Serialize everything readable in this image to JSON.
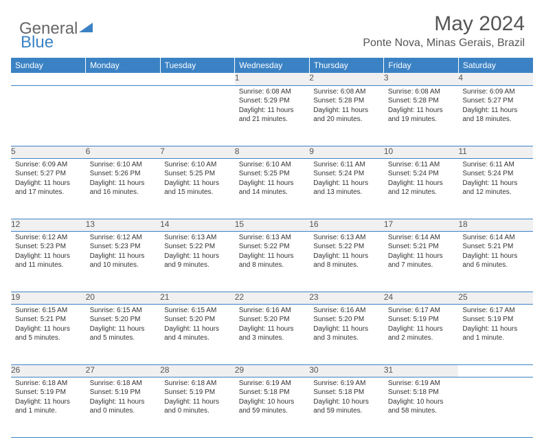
{
  "brand": {
    "word1": "General",
    "word2": "Blue"
  },
  "title": "May 2024",
  "location": "Ponte Nova, Minas Gerais, Brazil",
  "colors": {
    "header_bg": "#3b82c4",
    "header_text": "#ffffff",
    "daynum_bg": "#f0f0f0",
    "row_divider": "#3b82c4",
    "body_text": "#333333",
    "title_text": "#555555",
    "logo_gray": "#666666",
    "logo_blue": "#3b82c4"
  },
  "weekdays": [
    "Sunday",
    "Monday",
    "Tuesday",
    "Wednesday",
    "Thursday",
    "Friday",
    "Saturday"
  ],
  "weeks": [
    [
      null,
      null,
      null,
      {
        "d": "1",
        "sr": "6:08 AM",
        "ss": "5:29 PM",
        "dl": "11 hours and 21 minutes."
      },
      {
        "d": "2",
        "sr": "6:08 AM",
        "ss": "5:28 PM",
        "dl": "11 hours and 20 minutes."
      },
      {
        "d": "3",
        "sr": "6:08 AM",
        "ss": "5:28 PM",
        "dl": "11 hours and 19 minutes."
      },
      {
        "d": "4",
        "sr": "6:09 AM",
        "ss": "5:27 PM",
        "dl": "11 hours and 18 minutes."
      }
    ],
    [
      {
        "d": "5",
        "sr": "6:09 AM",
        "ss": "5:27 PM",
        "dl": "11 hours and 17 minutes."
      },
      {
        "d": "6",
        "sr": "6:10 AM",
        "ss": "5:26 PM",
        "dl": "11 hours and 16 minutes."
      },
      {
        "d": "7",
        "sr": "6:10 AM",
        "ss": "5:25 PM",
        "dl": "11 hours and 15 minutes."
      },
      {
        "d": "8",
        "sr": "6:10 AM",
        "ss": "5:25 PM",
        "dl": "11 hours and 14 minutes."
      },
      {
        "d": "9",
        "sr": "6:11 AM",
        "ss": "5:24 PM",
        "dl": "11 hours and 13 minutes."
      },
      {
        "d": "10",
        "sr": "6:11 AM",
        "ss": "5:24 PM",
        "dl": "11 hours and 12 minutes."
      },
      {
        "d": "11",
        "sr": "6:11 AM",
        "ss": "5:24 PM",
        "dl": "11 hours and 12 minutes."
      }
    ],
    [
      {
        "d": "12",
        "sr": "6:12 AM",
        "ss": "5:23 PM",
        "dl": "11 hours and 11 minutes."
      },
      {
        "d": "13",
        "sr": "6:12 AM",
        "ss": "5:23 PM",
        "dl": "11 hours and 10 minutes."
      },
      {
        "d": "14",
        "sr": "6:13 AM",
        "ss": "5:22 PM",
        "dl": "11 hours and 9 minutes."
      },
      {
        "d": "15",
        "sr": "6:13 AM",
        "ss": "5:22 PM",
        "dl": "11 hours and 8 minutes."
      },
      {
        "d": "16",
        "sr": "6:13 AM",
        "ss": "5:22 PM",
        "dl": "11 hours and 8 minutes."
      },
      {
        "d": "17",
        "sr": "6:14 AM",
        "ss": "5:21 PM",
        "dl": "11 hours and 7 minutes."
      },
      {
        "d": "18",
        "sr": "6:14 AM",
        "ss": "5:21 PM",
        "dl": "11 hours and 6 minutes."
      }
    ],
    [
      {
        "d": "19",
        "sr": "6:15 AM",
        "ss": "5:21 PM",
        "dl": "11 hours and 5 minutes."
      },
      {
        "d": "20",
        "sr": "6:15 AM",
        "ss": "5:20 PM",
        "dl": "11 hours and 5 minutes."
      },
      {
        "d": "21",
        "sr": "6:15 AM",
        "ss": "5:20 PM",
        "dl": "11 hours and 4 minutes."
      },
      {
        "d": "22",
        "sr": "6:16 AM",
        "ss": "5:20 PM",
        "dl": "11 hours and 3 minutes."
      },
      {
        "d": "23",
        "sr": "6:16 AM",
        "ss": "5:20 PM",
        "dl": "11 hours and 3 minutes."
      },
      {
        "d": "24",
        "sr": "6:17 AM",
        "ss": "5:19 PM",
        "dl": "11 hours and 2 minutes."
      },
      {
        "d": "25",
        "sr": "6:17 AM",
        "ss": "5:19 PM",
        "dl": "11 hours and 1 minute."
      }
    ],
    [
      {
        "d": "26",
        "sr": "6:18 AM",
        "ss": "5:19 PM",
        "dl": "11 hours and 1 minute."
      },
      {
        "d": "27",
        "sr": "6:18 AM",
        "ss": "5:19 PM",
        "dl": "11 hours and 0 minutes."
      },
      {
        "d": "28",
        "sr": "6:18 AM",
        "ss": "5:19 PM",
        "dl": "11 hours and 0 minutes."
      },
      {
        "d": "29",
        "sr": "6:19 AM",
        "ss": "5:18 PM",
        "dl": "10 hours and 59 minutes."
      },
      {
        "d": "30",
        "sr": "6:19 AM",
        "ss": "5:18 PM",
        "dl": "10 hours and 59 minutes."
      },
      {
        "d": "31",
        "sr": "6:19 AM",
        "ss": "5:18 PM",
        "dl": "10 hours and 58 minutes."
      },
      null
    ]
  ],
  "labels": {
    "sunrise": "Sunrise:",
    "sunset": "Sunset:",
    "daylight": "Daylight:"
  }
}
